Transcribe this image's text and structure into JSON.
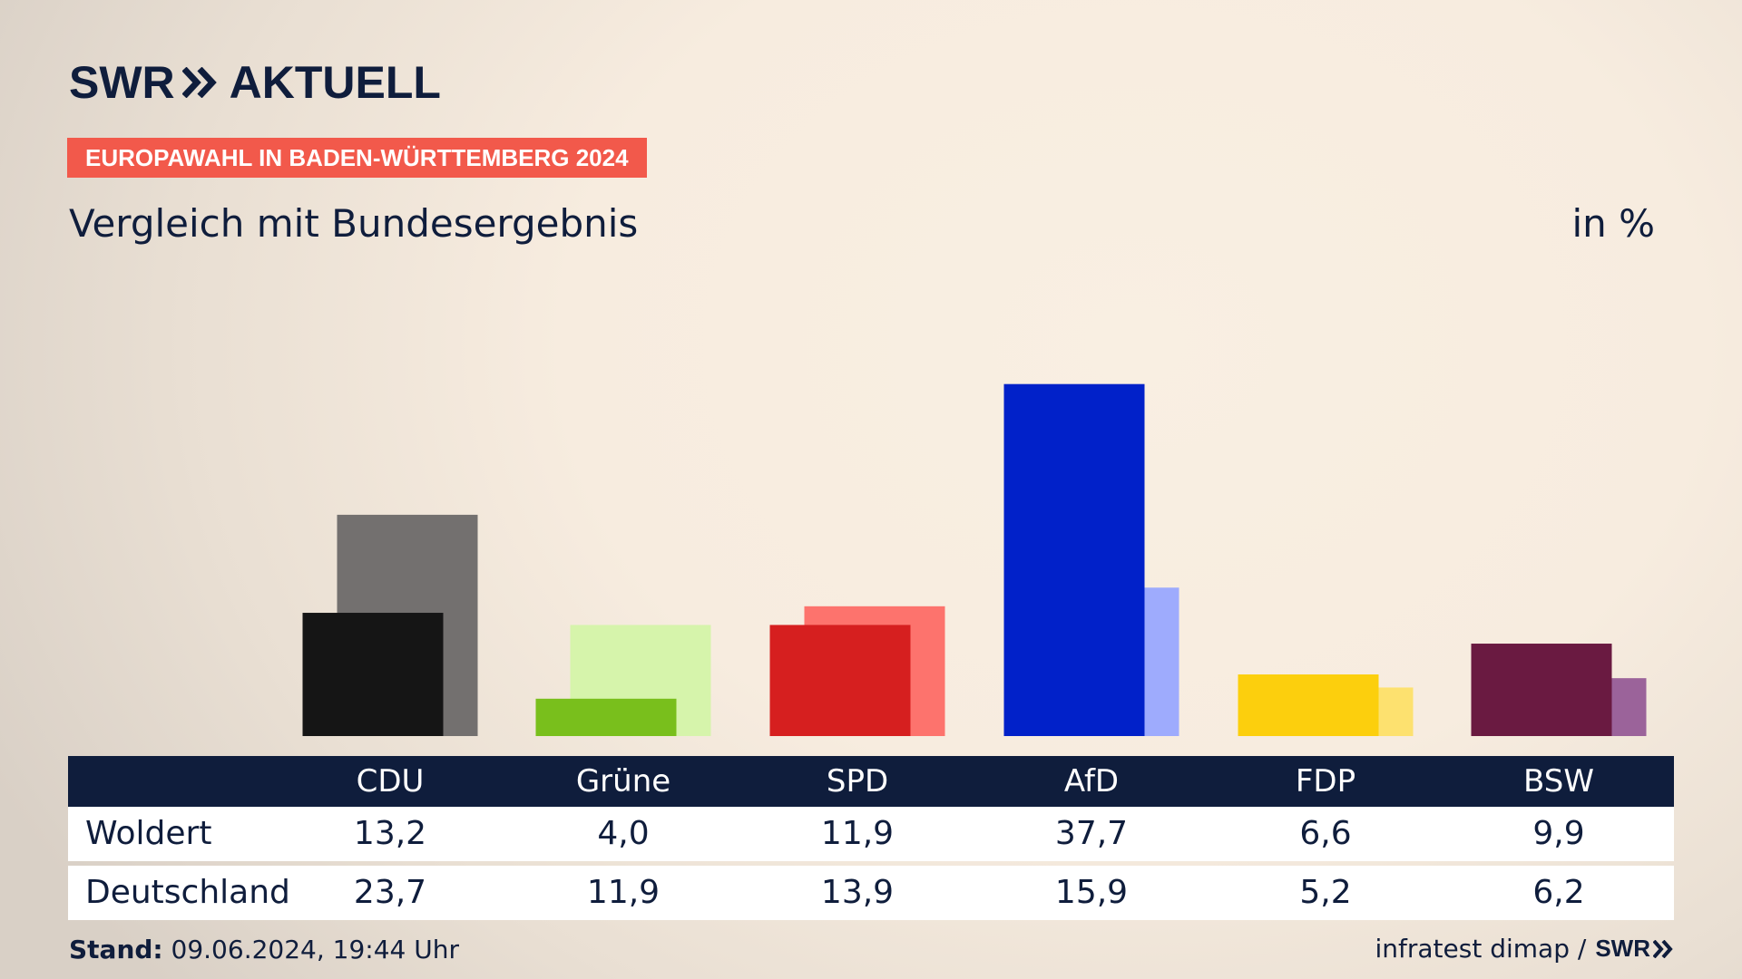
{
  "brand": {
    "logo_left": "SWR",
    "logo_right": "AKTUELL"
  },
  "badge": "EUROPAWAHL IN BADEN-WÜRTTEMBERG 2024",
  "subtitle": "Vergleich mit Bundesergebnis",
  "unit": "in %",
  "chart_data": {
    "type": "bar",
    "title": "Vergleich mit Bundesergebnis",
    "unit": "in %",
    "categories": [
      "CDU",
      "Grüne",
      "SPD",
      "AfD",
      "FDP",
      "BSW"
    ],
    "series": [
      {
        "name": "Woldert",
        "values": [
          13.2,
          4.0,
          11.9,
          37.7,
          6.6,
          9.9
        ]
      },
      {
        "name": "Deutschland",
        "values": [
          23.7,
          11.9,
          13.9,
          15.9,
          5.2,
          6.2
        ]
      }
    ],
    "colors_primary": [
      "#151515",
      "#79bf1c",
      "#d61f1f",
      "#0121c9",
      "#fccf0d",
      "#6a1a41"
    ],
    "colors_secondary": [
      "#73706f",
      "#d6f4ab",
      "#fd736d",
      "#9eabfd",
      "#fde16f",
      "#9b639a"
    ]
  },
  "table": {
    "headers": [
      "CDU",
      "Grüne",
      "SPD",
      "AfD",
      "FDP",
      "BSW"
    ],
    "rows": [
      {
        "label": "Woldert",
        "values": [
          "13,2",
          "4,0",
          "11,9",
          "37,7",
          "6,6",
          "9,9"
        ]
      },
      {
        "label": "Deutschland",
        "values": [
          "23,7",
          "11,9",
          "13,9",
          "15,9",
          "5,2",
          "6,2"
        ]
      }
    ]
  },
  "footer": {
    "stand_label": "Stand:",
    "stand_value": "09.06.2024, 19:44 Uhr",
    "source": "infratest dimap /",
    "source_brand": "SWR"
  },
  "colors": {
    "navy": "#0f1d3c",
    "badge": "#f2594b"
  }
}
